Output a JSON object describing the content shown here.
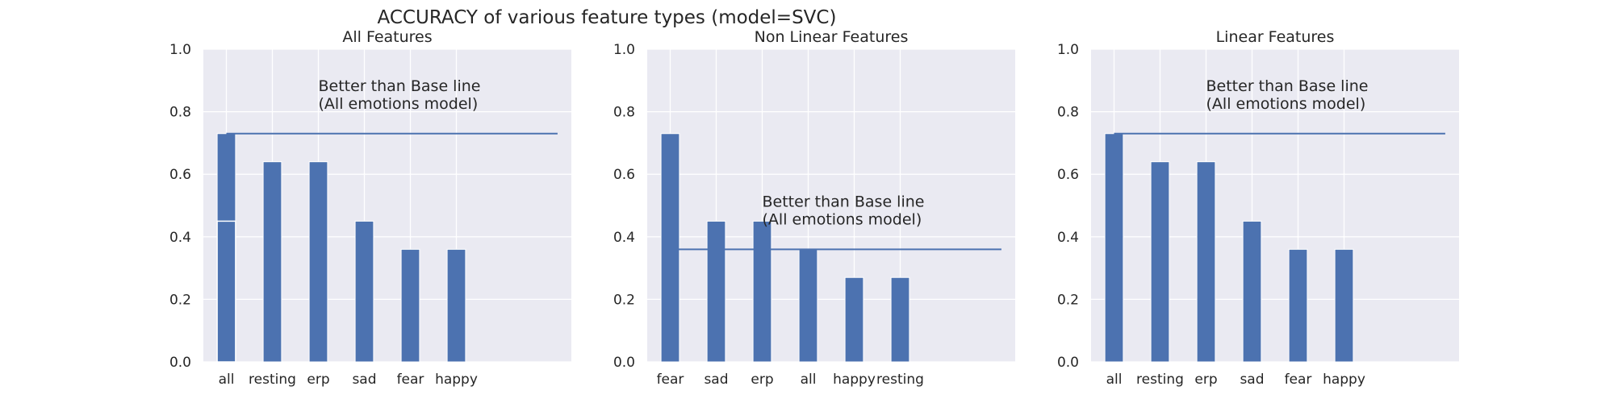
{
  "figure": {
    "suptitle": "ACCURACY of various feature types (model=SVC)",
    "colors": {
      "bar": "#4c72b0",
      "axes_bg": "#eaeaf2",
      "grid": "#ffffff",
      "text": "#262626"
    }
  },
  "chart_data": [
    {
      "type": "bar",
      "title": "All Features",
      "categories": [
        "all",
        "resting",
        "erp",
        "sad",
        "fear",
        "happy"
      ],
      "values": [
        0.73,
        0.64,
        0.64,
        0.45,
        0.36,
        0.36
      ],
      "overlay_value_first_bar": 0.45,
      "baseline": 0.73,
      "annotation": [
        "Better than Base line",
        "(All emotions model)"
      ],
      "ylim": [
        0,
        1.0
      ],
      "yticks": [
        "0.0",
        "0.2",
        "0.4",
        "0.6",
        "0.8",
        "1.0"
      ],
      "grid": true
    },
    {
      "type": "bar",
      "title": "Non Linear Features",
      "categories": [
        "fear",
        "sad",
        "erp",
        "all",
        "happy",
        "resting"
      ],
      "values": [
        0.73,
        0.45,
        0.45,
        0.36,
        0.27,
        0.27
      ],
      "baseline": 0.36,
      "annotation": [
        "Better than Base line",
        "(All emotions model)"
      ],
      "ylim": [
        0,
        1.0
      ],
      "yticks": [
        "0.0",
        "0.2",
        "0.4",
        "0.6",
        "0.8",
        "1.0"
      ],
      "grid": true
    },
    {
      "type": "bar",
      "title": "Linear Features",
      "categories": [
        "all",
        "resting",
        "erp",
        "sad",
        "fear",
        "happy"
      ],
      "values": [
        0.73,
        0.64,
        0.64,
        0.45,
        0.36,
        0.36
      ],
      "baseline": 0.73,
      "annotation": [
        "Better than Base line",
        "(All emotions model)"
      ],
      "ylim": [
        0,
        1.0
      ],
      "yticks": [
        "0.0",
        "0.2",
        "0.4",
        "0.6",
        "0.8",
        "1.0"
      ],
      "grid": true
    }
  ]
}
